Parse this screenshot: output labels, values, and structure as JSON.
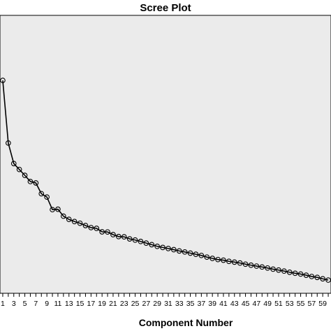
{
  "chart_data": {
    "type": "line",
    "title": "Scree Plot",
    "xlabel": "Component Number",
    "ylabel": "",
    "x": [
      1,
      2,
      3,
      4,
      5,
      6,
      7,
      8,
      9,
      10,
      11,
      12,
      13,
      14,
      15,
      16,
      17,
      18,
      19,
      20,
      21,
      22,
      23,
      24,
      25,
      26,
      27,
      28,
      29,
      30,
      31,
      32,
      33,
      34,
      35,
      36,
      37,
      38,
      39,
      40,
      41,
      42,
      43,
      44,
      45,
      46,
      47,
      48,
      49,
      50,
      51,
      52,
      53,
      54,
      55,
      56,
      57,
      58,
      59,
      60
    ],
    "x_tick_labels": [
      "1",
      "3",
      "5",
      "7",
      "9",
      "11",
      "13",
      "15",
      "17",
      "19",
      "21",
      "23",
      "25",
      "27",
      "29",
      "31",
      "33",
      "35",
      "37",
      "39",
      "41",
      "43",
      "45",
      "47",
      "49",
      "51",
      "53",
      "55",
      "57",
      "59"
    ],
    "series": [
      {
        "values": [
          15.33,
          10.45,
          8.85,
          8.39,
          7.93,
          7.45,
          7.34,
          6.5,
          6.24,
          5.26,
          5.29,
          4.75,
          4.5,
          4.33,
          4.2,
          4.02,
          3.86,
          3.8,
          3.53,
          3.52,
          3.31,
          3.16,
          3.14,
          2.98,
          2.89,
          2.78,
          2.65,
          2.53,
          2.4,
          2.31,
          2.23,
          2.14,
          2.04,
          1.96,
          1.87,
          1.78,
          1.69,
          1.56,
          1.46,
          1.37,
          1.32,
          1.23,
          1.17,
          1.1,
          1.01,
          0.93,
          0.86,
          0.79,
          0.71,
          0.62,
          0.55,
          0.47,
          0.38,
          0.3,
          0.24,
          0.15,
          0.05,
          -0.02,
          -0.13,
          -0.23
        ]
      }
    ],
    "xlim": [
      0.5,
      60.5
    ],
    "ylim": [
      -1.26,
      20.4
    ],
    "grid": false,
    "background": "#ebebeb",
    "line_color": "#000000"
  }
}
